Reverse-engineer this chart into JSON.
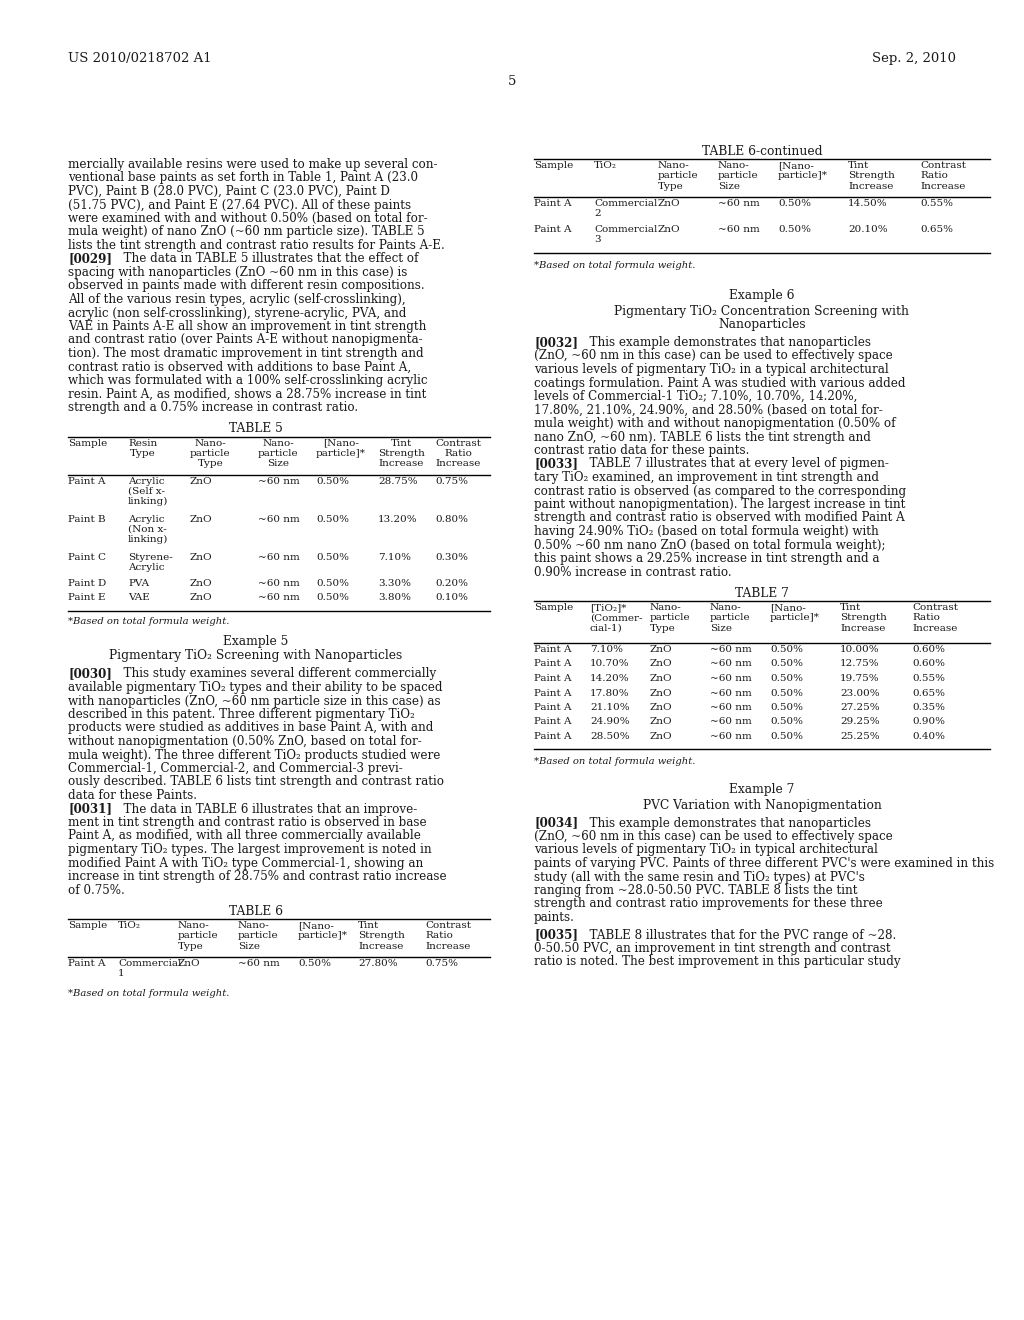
{
  "background_color": "#ffffff",
  "text_color": "#1a1a1a",
  "header_left": "US 2010/0218702 A1",
  "header_right": "Sep. 2, 2010",
  "page_number": "5"
}
